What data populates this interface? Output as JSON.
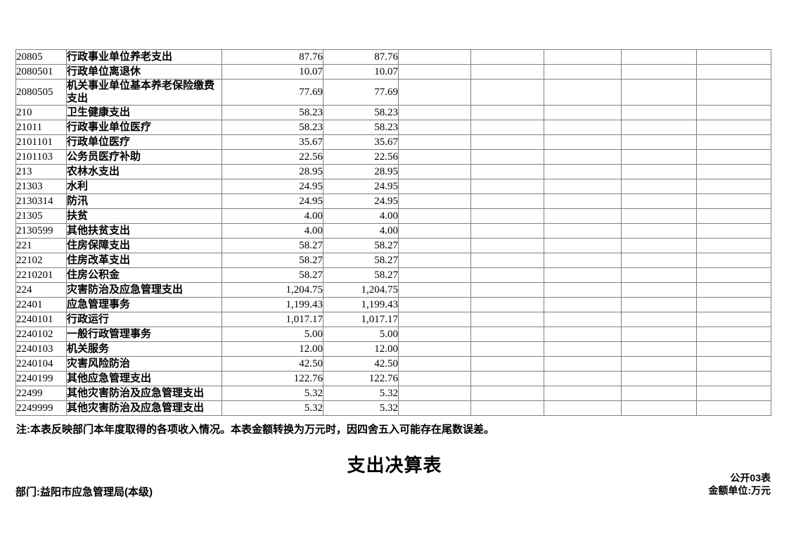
{
  "doc": {
    "footnote": "注:本表反映部门本年度取得的各项收入情况。本表金额转换为万元时，因四舍五入可能存在尾数误差。",
    "colors": {
      "background": "#ffffff",
      "text": "#000000",
      "table_border": "#808080"
    }
  },
  "table": {
    "empty_columns": 5,
    "rows": [
      [
        "20805",
        "行政事业单位养老支出",
        "87.76",
        "87.76"
      ],
      [
        "2080501",
        "行政单位离退休",
        "10.07",
        "10.07"
      ],
      [
        "2080505",
        "机关事业单位基本养老保险缴费支出",
        "77.69",
        "77.69"
      ],
      [
        "210",
        "卫生健康支出",
        "58.23",
        "58.23"
      ],
      [
        "21011",
        "行政事业单位医疗",
        "58.23",
        "58.23"
      ],
      [
        "2101101",
        "行政单位医疗",
        "35.67",
        "35.67"
      ],
      [
        "2101103",
        "公务员医疗补助",
        "22.56",
        "22.56"
      ],
      [
        "213",
        "农林水支出",
        "28.95",
        "28.95"
      ],
      [
        "21303",
        "水利",
        "24.95",
        "24.95"
      ],
      [
        "2130314",
        "防汛",
        "24.95",
        "24.95"
      ],
      [
        "21305",
        "扶贫",
        "4.00",
        "4.00"
      ],
      [
        "2130599",
        "其他扶贫支出",
        "4.00",
        "4.00"
      ],
      [
        "221",
        "住房保障支出",
        "58.27",
        "58.27"
      ],
      [
        "22102",
        "住房改革支出",
        "58.27",
        "58.27"
      ],
      [
        "2210201",
        "住房公积金",
        "58.27",
        "58.27"
      ],
      [
        "224",
        "灾害防治及应急管理支出",
        "1,204.75",
        "1,204.75"
      ],
      [
        "22401",
        "应急管理事务",
        "1,199.43",
        "1,199.43"
      ],
      [
        "2240101",
        "行政运行",
        "1,017.17",
        "1,017.17"
      ],
      [
        "2240102",
        "一般行政管理事务",
        "5.00",
        "5.00"
      ],
      [
        "2240103",
        "机关服务",
        "12.00",
        "12.00"
      ],
      [
        "2240104",
        "灾害风险防治",
        "42.50",
        "42.50"
      ],
      [
        "2240199",
        "其他应急管理支出",
        "122.76",
        "122.76"
      ],
      [
        "22499",
        "其他灾害防治及应急管理支出",
        "5.32",
        "5.32"
      ],
      [
        "2249999",
        "其他灾害防治及应急管理支出",
        "5.32",
        "5.32"
      ]
    ]
  },
  "expenditure_section": {
    "title": "支出决算表",
    "table_code": "公开03表",
    "unit_label": "金额单位:万元",
    "department": "部门:益阳市应急管理局(本级)"
  }
}
